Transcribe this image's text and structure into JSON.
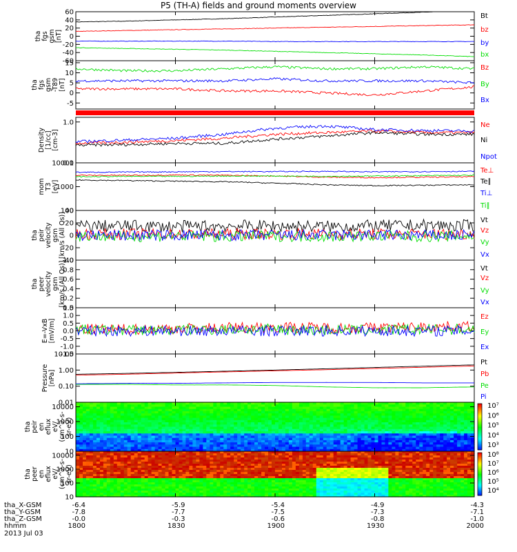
{
  "title": "P5 (TH-A) fields and ground moments overview",
  "date": "2013 Jul 03",
  "colors": {
    "black": "#000000",
    "red": "#ff0000",
    "green": "#00dd00",
    "blue": "#0000ff"
  },
  "chart_data": [
    {
      "type": "line",
      "ylabel": [
        "tha",
        "fgs",
        "gsm",
        "[nT]"
      ],
      "ylim": [
        -60,
        60
      ],
      "ticks": [
        "60",
        "40",
        "20",
        "0",
        "-20",
        "-40",
        "-60"
      ],
      "tick_values": [
        60,
        40,
        20,
        0,
        -20,
        -40,
        -60
      ],
      "series": [
        {
          "name": "Bt",
          "color": "black",
          "values": [
            35,
            37,
            40,
            43,
            47,
            51,
            55,
            59,
            63
          ]
        },
        {
          "name": "bz",
          "color": "red",
          "values": [
            12,
            14,
            16,
            18,
            20,
            22,
            24,
            26,
            28
          ]
        },
        {
          "name": "by",
          "color": "blue",
          "values": [
            -12,
            -12,
            -12,
            -12,
            -13,
            -13,
            -13,
            -13,
            -13
          ]
        },
        {
          "name": "bx",
          "color": "green",
          "values": [
            -28,
            -30,
            -32,
            -34,
            -37,
            -40,
            -43,
            -46,
            -50
          ]
        }
      ]
    },
    {
      "type": "line",
      "ylabel": [
        "tha",
        "fgs",
        "gsm",
        "-T89",
        "[nT]"
      ],
      "ylim": [
        -8,
        16
      ],
      "ticks": [
        "15",
        "10",
        "5",
        "0",
        "-5"
      ],
      "tick_values": [
        15,
        10,
        5,
        0,
        -5
      ],
      "series": [
        {
          "name": "Bz",
          "color": "red",
          "values": [
            2,
            2,
            2,
            1,
            1,
            0,
            -1,
            1,
            3
          ]
        },
        {
          "name": "By",
          "color": "green",
          "values": [
            12,
            11,
            11,
            12,
            13,
            12,
            12,
            13,
            12
          ]
        },
        {
          "name": "Bx",
          "color": "blue",
          "values": [
            6,
            6,
            6,
            6,
            7,
            6,
            6,
            6,
            5
          ]
        }
      ]
    },
    {
      "type": "line",
      "log": true,
      "ylabel": [
        "Density",
        "[1/cc]",
        "[cm-3]"
      ],
      "ylim": [
        0.1,
        1.3
      ],
      "ticks": [
        "1.0",
        "0.1"
      ],
      "tick_values": [
        1.0,
        0.1
      ],
      "series": [
        {
          "name": "Ne",
          "color": "red",
          "values": [
            0.3,
            0.32,
            0.35,
            0.4,
            0.5,
            0.55,
            0.6,
            0.55,
            0.55
          ]
        },
        {
          "name": "Ni",
          "color": "black",
          "values": [
            0.27,
            0.28,
            0.3,
            0.3,
            0.38,
            0.45,
            0.55,
            0.5,
            0.5
          ]
        },
        {
          "name": "Npot",
          "color": "blue",
          "values": [
            0.33,
            0.36,
            0.4,
            0.5,
            0.7,
            0.8,
            0.65,
            0.62,
            0.6
          ]
        }
      ]
    },
    {
      "type": "line",
      "log": true,
      "ylabel": [
        "mom",
        "T3",
        "[eV]"
      ],
      "ylim": [
        100,
        10000
      ],
      "ticks": [
        "10000",
        "1000",
        "100"
      ],
      "tick_values": [
        10000,
        1000,
        100
      ],
      "series": [
        {
          "name": "Te⊥",
          "color": "red",
          "values": [
            3000,
            3000,
            3100,
            3000,
            2800,
            2500,
            2400,
            2500,
            2600
          ]
        },
        {
          "name": "Te∥",
          "color": "black",
          "values": [
            1900,
            1800,
            1700,
            1600,
            1400,
            1200,
            1100,
            1150,
            1200
          ]
        },
        {
          "name": "Ti⊥",
          "color": "blue",
          "values": [
            4000,
            4100,
            4200,
            4300,
            4300,
            4400,
            4200,
            4300,
            4400
          ]
        },
        {
          "name": "Ti∥",
          "color": "green",
          "values": [
            2600,
            2700,
            2700,
            2800,
            2800,
            2700,
            2800,
            2900,
            3000
          ]
        }
      ]
    },
    {
      "type": "line",
      "ylabel": [
        "tha",
        "peir",
        "velocity",
        "gsm",
        "[km/s (All Qs)]"
      ],
      "ylim": [
        -40,
        40
      ],
      "ticks": [
        "40",
        "20",
        "0",
        "-20",
        "-40"
      ],
      "tick_values": [
        40,
        20,
        0,
        -20,
        -40
      ],
      "series": [
        {
          "name": "Vt",
          "color": "black",
          "values": [
            15,
            15,
            14,
            15,
            15,
            14,
            15,
            16,
            15
          ]
        },
        {
          "name": "Vz",
          "color": "red",
          "values": [
            2,
            2,
            2,
            2,
            2,
            2,
            2,
            2,
            2
          ]
        },
        {
          "name": "Vy",
          "color": "green",
          "values": [
            -1,
            -2,
            -1,
            -2,
            -1,
            -2,
            -1,
            -2,
            -1
          ]
        },
        {
          "name": "Vx",
          "color": "blue",
          "values": [
            0,
            0,
            0,
            0,
            0,
            0,
            0,
            0,
            0
          ]
        }
      ]
    },
    {
      "type": "line",
      "ylabel": [
        "tha",
        "peer",
        "velocity",
        "gsm",
        "[km/s (All Qs)]"
      ],
      "ylim": [
        0,
        1
      ],
      "ticks": [
        "1.0",
        "0.8",
        "0.6",
        "0.4",
        "0.2",
        "0.0"
      ],
      "tick_values": [
        1.0,
        0.8,
        0.6,
        0.4,
        0.2,
        0.0
      ],
      "series": [
        {
          "name": "Vt",
          "color": "black",
          "values": []
        },
        {
          "name": "Vz",
          "color": "red",
          "values": []
        },
        {
          "name": "Vy",
          "color": "green",
          "values": []
        },
        {
          "name": "Vx",
          "color": "blue",
          "values": []
        }
      ]
    },
    {
      "type": "line",
      "ylabel": [
        "E=-VxB",
        "[mV/m]"
      ],
      "ylim": [
        -1.5,
        1.5
      ],
      "ticks": [
        "1.5",
        "1.0",
        "0.5",
        "0.0",
        "-0.5",
        "-1.0",
        "-1.5"
      ],
      "tick_values": [
        1.5,
        1.0,
        0.5,
        0.0,
        -0.5,
        -1.0,
        -1.5
      ],
      "series": [
        {
          "name": "Ez",
          "color": "red",
          "values": [
            0.1,
            0.1,
            0.15,
            0.2,
            0.25,
            0.2,
            0.2,
            0.25,
            0.3
          ]
        },
        {
          "name": "Ey",
          "color": "green",
          "values": [
            0.05,
            0.05,
            0.05,
            0.1,
            0.1,
            0.05,
            0.05,
            0.1,
            0.1
          ]
        },
        {
          "name": "Ex",
          "color": "blue",
          "values": [
            0,
            0,
            0,
            0,
            0,
            0,
            0,
            0,
            0
          ]
        }
      ]
    },
    {
      "type": "line",
      "log": true,
      "ylabel": [
        "Pressure",
        "[nPa]"
      ],
      "ylim": [
        0.01,
        10
      ],
      "ticks": [
        "10.00",
        "1.00",
        "0.10",
        "0.01"
      ],
      "tick_values": [
        10,
        1,
        0.1,
        0.01
      ],
      "series": [
        {
          "name": "Pt",
          "color": "black",
          "values": [
            0.55,
            0.62,
            0.72,
            0.85,
            1.0,
            1.2,
            1.45,
            1.75,
            2.1
          ]
        },
        {
          "name": "Pb",
          "color": "red",
          "values": [
            0.48,
            0.55,
            0.65,
            0.77,
            0.9,
            1.05,
            1.25,
            1.5,
            1.8
          ]
        },
        {
          "name": "Pe",
          "color": "green",
          "values": [
            0.13,
            0.13,
            0.12,
            0.12,
            0.11,
            0.09,
            0.08,
            0.08,
            0.09
          ]
        },
        {
          "name": "Pi",
          "color": "blue",
          "values": [
            0.14,
            0.15,
            0.15,
            0.16,
            0.17,
            0.17,
            0.17,
            0.16,
            0.16
          ]
        }
      ]
    },
    {
      "type": "heatmap",
      "ylabel": [
        "tha",
        "peir",
        "en",
        "eflux",
        "eV/",
        "(cm^2-s-",
        "sr-eV)"
      ],
      "ylim": [
        10,
        20000
      ],
      "ticks": [
        "10000",
        "1000",
        "100",
        "10"
      ],
      "tick_values": [
        10000,
        1000,
        100,
        10
      ],
      "colorbar_ticks": [
        "10⁷",
        "10⁶",
        "10⁵",
        "10⁴",
        "10³"
      ],
      "colorbar_range": [
        3,
        7.3
      ]
    },
    {
      "type": "heatmap",
      "ylabel": [
        "tha",
        "peer",
        "en",
        "eflux",
        "eV/",
        "(cm^2-s-",
        "sr-eV)"
      ],
      "ylim": [
        10,
        20000
      ],
      "ticks": [
        "10000",
        "1000",
        "100",
        "10"
      ],
      "tick_values": [
        10000,
        1000,
        100,
        10
      ],
      "colorbar_ticks": [
        "10⁸",
        "10⁷",
        "10⁶",
        "10⁵",
        "10⁴"
      ],
      "colorbar_range": [
        3.6,
        8
      ]
    }
  ],
  "x_axis": {
    "xlim": [
      1800,
      2000
    ],
    "tick_times": [
      1800,
      1830,
      1900,
      1930,
      2000
    ],
    "rows": [
      {
        "label": "tha_X-GSM",
        "values": [
          "-6.4",
          "-5.9",
          "-5.4",
          "-4.9",
          "-4.3"
        ]
      },
      {
        "label": "tha_Y-GSM",
        "values": [
          "-7.8",
          "-7.7",
          "-7.5",
          "-7.3",
          "-7.1"
        ]
      },
      {
        "label": "tha_Z-GSM",
        "values": [
          "-0.0",
          "-0.3",
          "-0.6",
          "-0.8",
          "-1.0"
        ]
      },
      {
        "label": "hhmm",
        "values": [
          "1800",
          "1830",
          "1900",
          "1930",
          "2000"
        ]
      }
    ]
  }
}
